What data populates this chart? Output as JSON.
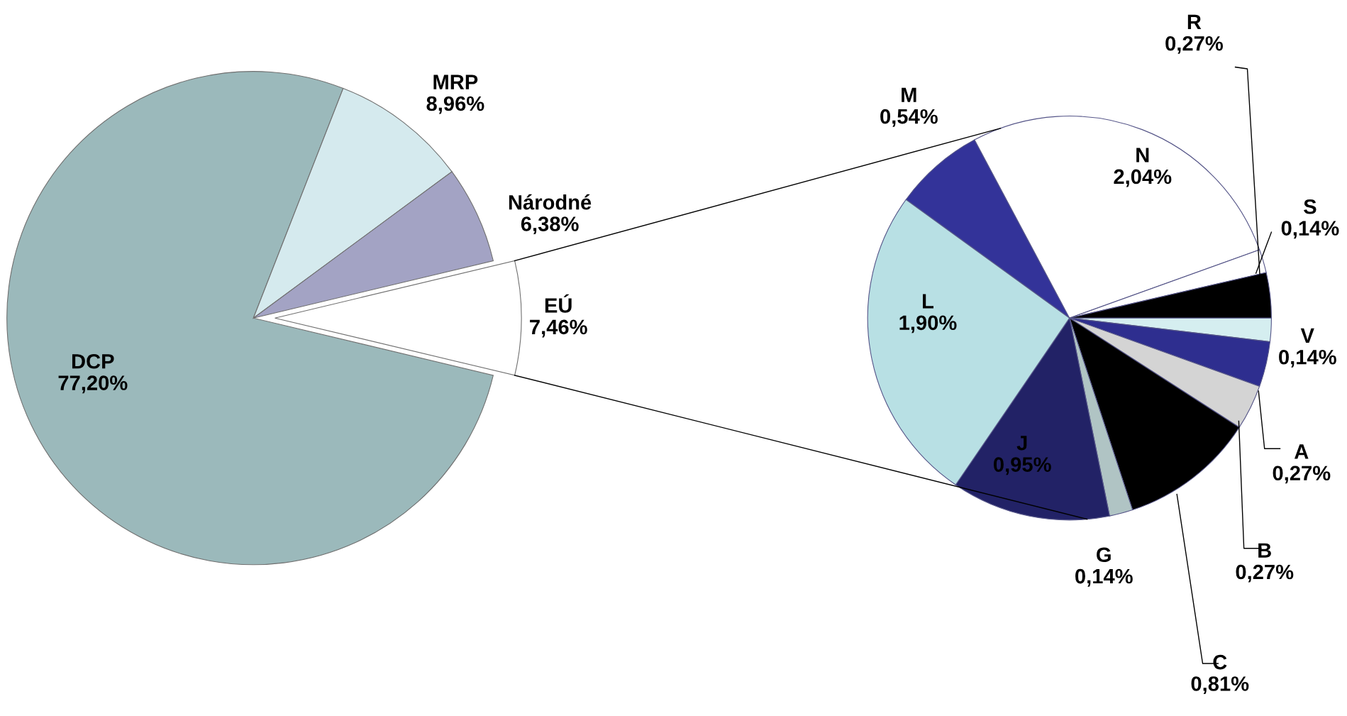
{
  "chart_data": [
    {
      "type": "pie",
      "categories": [
        "DCP",
        "MRP",
        "Národné",
        "EÚ"
      ],
      "values": [
        77.2,
        8.96,
        6.38,
        7.46
      ],
      "colors": [
        "#9bb9bb",
        "#d5eaee",
        "#a3a3c4",
        "#ffffff"
      ],
      "value_labels": [
        "77,20%",
        "8,96%",
        "6,38%",
        "7,46%"
      ]
    },
    {
      "type": "pie",
      "categories": [
        "M",
        "N",
        "S",
        "R",
        "V",
        "A",
        "B",
        "C",
        "G",
        "J",
        "L"
      ],
      "values": [
        0.54,
        2.04,
        0.14,
        0.27,
        0.14,
        0.27,
        0.27,
        0.81,
        0.14,
        0.95,
        1.9
      ],
      "colors": [
        "#333399",
        "#ffffff",
        "#ffffff",
        "#000000",
        "#d5eef0",
        "#2e2e8f",
        "#d4d4d4",
        "#000000",
        "#b0c4c4",
        "#222266",
        "#b8e0e4"
      ],
      "value_labels": [
        "0,54%",
        "2,04%",
        "0,14%",
        "0,27%",
        "0,14%",
        "0,27%",
        "0,27%",
        "0,81%",
        "0,14%",
        "0,95%",
        "1,90%"
      ]
    }
  ]
}
